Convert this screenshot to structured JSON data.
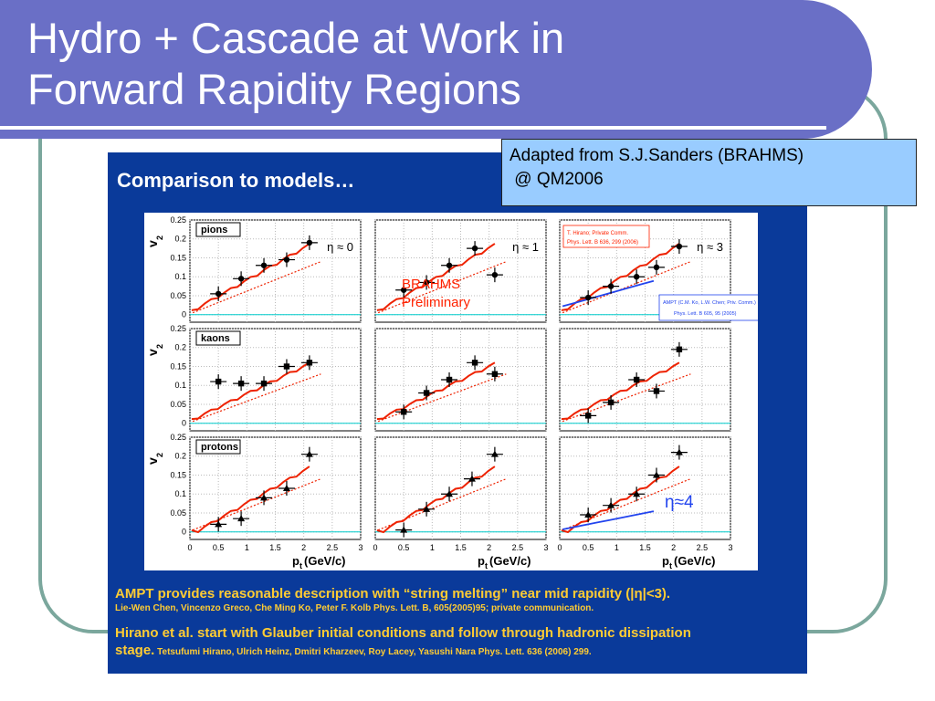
{
  "slide_title_line1": "Hydro + Cascade at Work in",
  "slide_title_line2": "Forward Rapidity Regions",
  "credit": {
    "line1": "Adapted from S.J.Sanders (BRAHMS)",
    "line2": " @ QM2006"
  },
  "figure": {
    "heading": "Comparison to models…",
    "preliminary_line1": "BRAHMS",
    "preliminary_line2": "Preliminary",
    "eta_big_label": "η≈4",
    "legend_hirano_line1": "T. Hirano; Private Comm.",
    "legend_hirano_line2": "Phys. Lett. B 636, 299 (2006)",
    "legend_ampt_line1": "AMPT (C.M. Ko, L.W. Chen; Priv. Comm.)",
    "legend_ampt_line2": "Phys. Lett. B 605, 95 (2005)",
    "colors": {
      "data": "#000000",
      "hydro": "#ee2200",
      "ampt": "#2244ee",
      "zero_line": "#00cccc",
      "text_accent": "#ff2200",
      "eta4": "#2244ee"
    }
  },
  "notes": {
    "ampt_main": "AMPT provides reasonable description with “string melting” near mid rapidity (|η|<3).",
    "ampt_ref": "Lie-Wen Chen, Vincenzo Greco, Che Ming Ko, Peter F. Kolb Phys. Lett. B, 605(2005)95; private communication.",
    "hirano_main_line1": "Hirano et al. start with Glauber initial conditions and follow through hadronic dissipation",
    "hirano_main_line2": "stage.",
    "hirano_ref": " Tetsufumi Hirano, Ulrich Heinz, Dmitri Kharzeev, Roy Lacey, Yasushi Nara Phys. Lett. 636 (2006) 299."
  },
  "chart_data": {
    "type": "scatter",
    "ylabel": "v2",
    "xlabel": "pt (GeV/c)",
    "xlim": [
      0,
      3
    ],
    "ylim": [
      -0.02,
      0.25
    ],
    "x_ticks": [
      "0",
      "0.5",
      "1",
      "1.5",
      "2",
      "2.5",
      "3"
    ],
    "y_ticks": [
      "0",
      "0.05",
      "0.1",
      "0.15",
      "0.2",
      "0.25"
    ],
    "rows": [
      "pions",
      "kaons",
      "protons"
    ],
    "columns": [
      "η ≈ 0",
      "η ≈ 1",
      "η ≈ 3"
    ],
    "panels": [
      {
        "row": 0,
        "col": 0,
        "points": [
          [
            0.5,
            0.055
          ],
          [
            0.9,
            0.095
          ],
          [
            1.3,
            0.13
          ],
          [
            1.7,
            0.145
          ],
          [
            2.1,
            0.19
          ]
        ]
      },
      {
        "row": 0,
        "col": 1,
        "points": [
          [
            0.5,
            0.065
          ],
          [
            0.9,
            0.085
          ],
          [
            1.3,
            0.13
          ],
          [
            1.75,
            0.175
          ],
          [
            2.1,
            0.105
          ]
        ]
      },
      {
        "row": 0,
        "col": 2,
        "points": [
          [
            0.5,
            0.045
          ],
          [
            0.9,
            0.075
          ],
          [
            1.35,
            0.1
          ],
          [
            1.7,
            0.125
          ],
          [
            2.1,
            0.18
          ]
        ]
      },
      {
        "row": 1,
        "col": 0,
        "points": [
          [
            0.5,
            0.11
          ],
          [
            0.9,
            0.105
          ],
          [
            1.3,
            0.105
          ],
          [
            1.7,
            0.15
          ],
          [
            2.1,
            0.16
          ]
        ]
      },
      {
        "row": 1,
        "col": 1,
        "points": [
          [
            0.5,
            0.03
          ],
          [
            0.9,
            0.08
          ],
          [
            1.3,
            0.115
          ],
          [
            1.75,
            0.16
          ],
          [
            2.1,
            0.13
          ]
        ]
      },
      {
        "row": 1,
        "col": 2,
        "points": [
          [
            0.5,
            0.02
          ],
          [
            0.9,
            0.055
          ],
          [
            1.35,
            0.115
          ],
          [
            1.7,
            0.085
          ],
          [
            2.1,
            0.195
          ]
        ]
      },
      {
        "row": 2,
        "col": 0,
        "points": [
          [
            0.5,
            0.02
          ],
          [
            0.9,
            0.035
          ],
          [
            1.3,
            0.09
          ],
          [
            1.7,
            0.115
          ],
          [
            2.1,
            0.205
          ]
        ]
      },
      {
        "row": 2,
        "col": 1,
        "points": [
          [
            0.5,
            0.005
          ],
          [
            0.9,
            0.06
          ],
          [
            1.3,
            0.1
          ],
          [
            1.7,
            0.14
          ],
          [
            2.1,
            0.205
          ]
        ]
      },
      {
        "row": 2,
        "col": 2,
        "points": [
          [
            0.5,
            0.045
          ],
          [
            0.9,
            0.07
          ],
          [
            1.35,
            0.1
          ],
          [
            1.7,
            0.15
          ],
          [
            2.1,
            0.21
          ]
        ]
      }
    ]
  }
}
